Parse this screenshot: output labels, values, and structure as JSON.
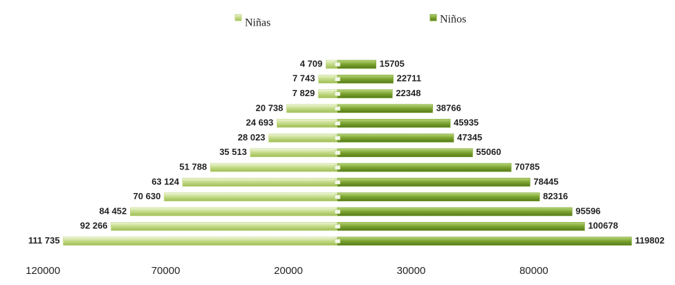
{
  "chart_data": {
    "type": "pyramid",
    "series": [
      {
        "name": "Niñas",
        "color": "#c3da86",
        "values": [
          4709,
          7743,
          7829,
          20738,
          24693,
          28023,
          35513,
          51788,
          63124,
          70630,
          84452,
          92266,
          111735
        ],
        "value_labels": [
          "4 709",
          "7 743",
          "7 829",
          "20 738",
          "24 693",
          "28 023",
          "35 513",
          "51 788",
          "63 124",
          "70 630",
          "84 452",
          "92 266",
          "111 735"
        ]
      },
      {
        "name": "Niños",
        "color": "#7ba32f",
        "values": [
          15705,
          22711,
          22348,
          38766,
          45935,
          47345,
          55060,
          70785,
          78445,
          82316,
          95596,
          100678,
          119802
        ]
      }
    ],
    "xlim": [
      -137500,
      137500
    ],
    "xticks": [
      {
        "value": -120000,
        "label": "120000"
      },
      {
        "value": -70000,
        "label": "70000"
      },
      {
        "value": -20000,
        "label": "20000"
      },
      {
        "value": 30000,
        "label": "30000"
      },
      {
        "value": 80000,
        "label": "80000"
      }
    ]
  }
}
